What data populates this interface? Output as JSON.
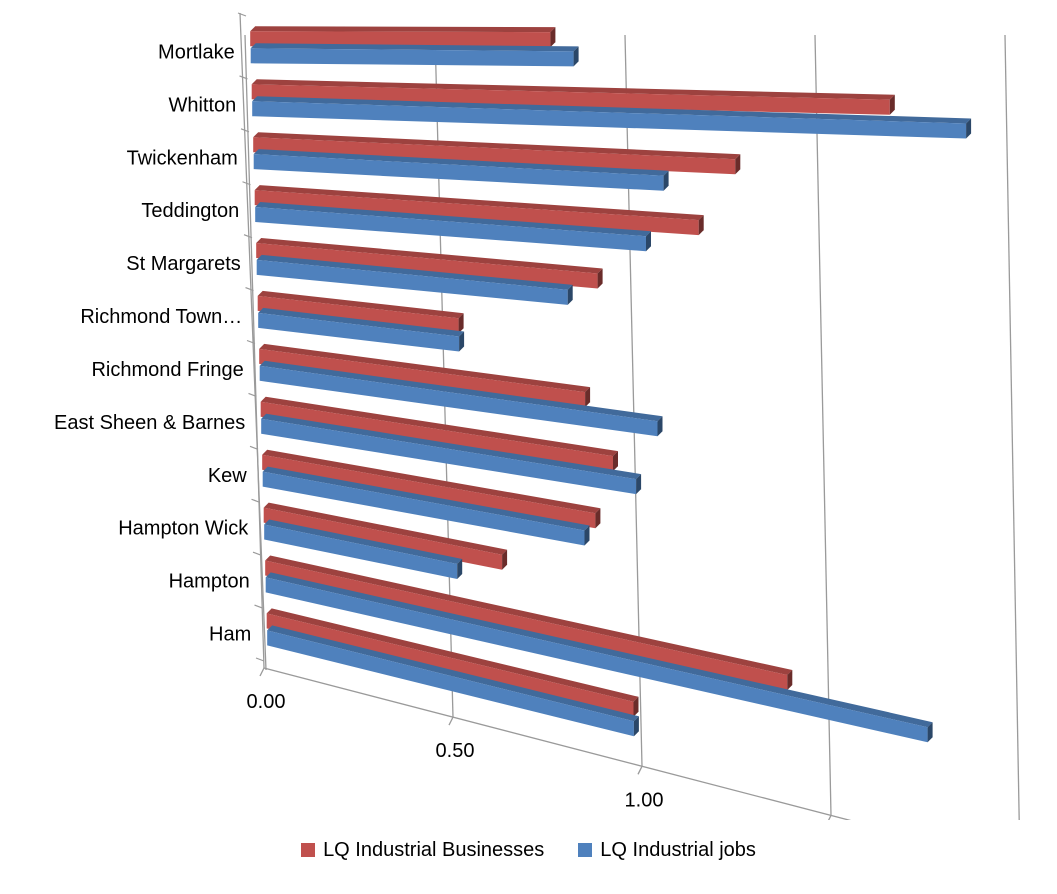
{
  "chart_data": {
    "type": "bar",
    "orientation": "horizontal",
    "style": "3d-perspective",
    "categories": [
      "Mortlake",
      "Whitton",
      "Twickenham",
      "Teddington",
      "St Margarets",
      "Richmond Town…",
      "Richmond Fringe",
      "East Sheen & Barnes",
      "Kew",
      "Hampton Wick",
      "Hampton",
      "Ham"
    ],
    "series": [
      {
        "name": "LQ Industrial Businesses",
        "color": "#C0504D",
        "values": [
          0.79,
          1.68,
          1.27,
          1.17,
          0.9,
          0.53,
          0.86,
          0.93,
          0.88,
          0.63,
          1.38,
          0.97
        ]
      },
      {
        "name": "LQ Industrial jobs",
        "color": "#4F81BD",
        "values": [
          0.85,
          1.88,
          1.08,
          1.03,
          0.82,
          0.53,
          1.05,
          0.99,
          0.85,
          0.51,
          1.75,
          0.97
        ]
      }
    ],
    "xlim": [
      0,
      2
    ],
    "ticks": [
      "0.00",
      "0.50",
      "1.00",
      "1.50",
      "2.00"
    ],
    "gridlines": true,
    "legend": "bottom"
  },
  "legend": {
    "items": [
      {
        "label": "LQ Industrial Businesses",
        "color": "#C0504D"
      },
      {
        "label": "LQ Industrial jobs",
        "color": "#4F81BD"
      }
    ]
  }
}
